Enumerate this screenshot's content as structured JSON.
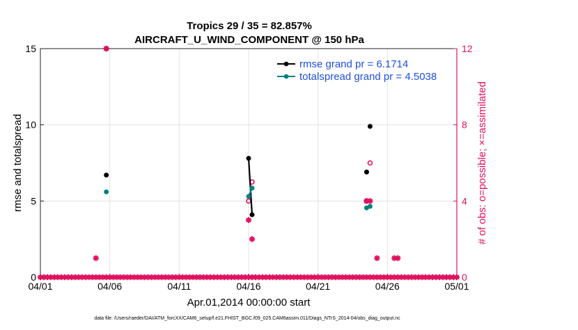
{
  "colors": {
    "rmse": "#000000",
    "spread": "#008080",
    "obs": "#e0115f",
    "legend_text": "#1f4fe0",
    "grid": "#e3e3e3",
    "axis": "#222222"
  },
  "chart_data": {
    "type": "scatter",
    "title": "Tropics 29 / 35 = 82.857%",
    "subtitle": "AIRCRAFT_U_WIND_COMPONENT @ 150 hPa",
    "xlabel": "Apr.01,2014 00:00:00 start",
    "ylabel_left": "rmse and totalspread",
    "ylabel_right": "# of obs: o=possible; ×=assimilated",
    "footnote": "data file: /Users/raeder/DAI/ATM_forcXX/CAM6_setup/f.e21.FHIST_BGC.f09_025.CAM6assim.011/Diags_NTrS_2014-04/obs_diag_output.nc",
    "xlim": [
      1,
      31
    ],
    "ylim_left": [
      0,
      15
    ],
    "ylim_right": [
      0,
      12
    ],
    "grid": true,
    "legend_position": "top-right",
    "x_ticks": [
      1,
      6,
      11,
      16,
      21,
      26,
      31
    ],
    "x_tick_labels": [
      "04/01",
      "04/06",
      "04/11",
      "04/16",
      "04/21",
      "04/26",
      "05/01"
    ],
    "y_ticks_left": [
      0,
      5,
      10,
      15
    ],
    "y_tick_labels_left": [
      "0",
      "5",
      "10",
      "15"
    ],
    "y_ticks_right": [
      0,
      4,
      8,
      12
    ],
    "y_tick_labels_right": [
      "0",
      "4",
      "8",
      "12"
    ],
    "legend": [
      "rmse grand pr = 6.1714",
      "totalspread grand pr = 4.5038"
    ],
    "series": [
      {
        "name": "rmse grand pr = 6.1714",
        "axis": "left",
        "x": [
          5.75,
          16.0,
          16.25,
          24.5,
          24.75
        ],
        "y": [
          6.7,
          7.8,
          4.1,
          6.9,
          9.9
        ],
        "segments": [
          [
            1,
            2
          ]
        ]
      },
      {
        "name": "totalspread grand pr = 4.5038",
        "axis": "left",
        "x": [
          5.75,
          16.0,
          16.25,
          24.5,
          24.75
        ],
        "y": [
          5.6,
          5.3,
          5.85,
          4.55,
          4.65
        ],
        "segments": [
          [
            1,
            2
          ]
        ]
      }
    ],
    "obs_possible": {
      "axis": "right",
      "x": [
        5.75,
        16.0,
        16.25,
        24.5,
        24.75
      ],
      "y": [
        12,
        4,
        5,
        4,
        6
      ]
    },
    "obs_assimilated": {
      "axis": "right",
      "x": [
        5.0,
        5.75,
        16.0,
        16.25,
        24.5,
        24.75,
        25.25,
        26.5,
        26.75
      ],
      "y": [
        1,
        12,
        3,
        2,
        4,
        4,
        1,
        1,
        1
      ]
    },
    "obs_baseline": {
      "axis": "right",
      "x_start": 1,
      "x_end": 31,
      "step": 0.25,
      "value": 0
    }
  }
}
